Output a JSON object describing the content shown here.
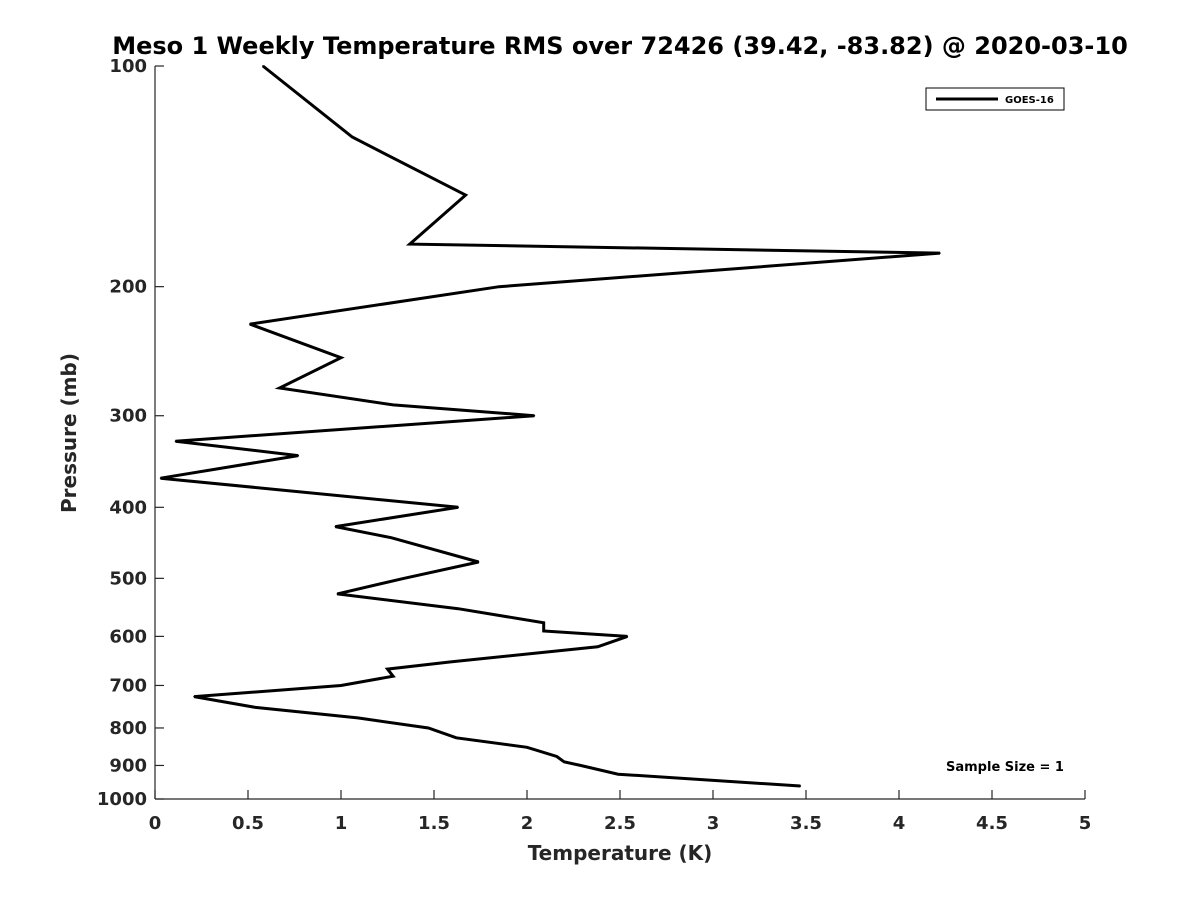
{
  "chart_data": {
    "type": "line",
    "title": "Meso 1 Weekly Temperature RMS over 72426 (39.42, -83.82) @ 2020-03-10",
    "xlabel": "Temperature (K)",
    "ylabel": "Pressure (mb)",
    "xlim": [
      0,
      5
    ],
    "ylim": [
      100,
      1000
    ],
    "y_scale": "log",
    "y_reversed": true,
    "xticks": [
      "0",
      "0.5",
      "1",
      "1.5",
      "2",
      "2.5",
      "3",
      "3.5",
      "4",
      "4.5",
      "5"
    ],
    "yticks": [
      "100",
      "200",
      "300",
      "400",
      "500",
      "600",
      "700",
      "800",
      "900",
      "1000"
    ],
    "grid": false,
    "legend_position": "top-right",
    "annotation": "Sample Size = 1",
    "series": [
      {
        "name": "GOES-16",
        "color": "#000000",
        "points": [
          {
            "x": 0.58,
            "y": 100
          },
          {
            "x": 1.06,
            "y": 125
          },
          {
            "x": 1.67,
            "y": 150
          },
          {
            "x": 1.37,
            "y": 175
          },
          {
            "x": 4.22,
            "y": 180
          },
          {
            "x": 1.85,
            "y": 200
          },
          {
            "x": 0.51,
            "y": 225
          },
          {
            "x": 1.0,
            "y": 250
          },
          {
            "x": 0.67,
            "y": 275
          },
          {
            "x": 1.28,
            "y": 290
          },
          {
            "x": 2.04,
            "y": 300
          },
          {
            "x": 0.11,
            "y": 325
          },
          {
            "x": 0.77,
            "y": 340
          },
          {
            "x": 0.03,
            "y": 365
          },
          {
            "x": 1.63,
            "y": 400
          },
          {
            "x": 0.97,
            "y": 425
          },
          {
            "x": 1.27,
            "y": 440
          },
          {
            "x": 1.74,
            "y": 475
          },
          {
            "x": 1.34,
            "y": 500
          },
          {
            "x": 0.98,
            "y": 525
          },
          {
            "x": 1.63,
            "y": 550
          },
          {
            "x": 2.09,
            "y": 575
          },
          {
            "x": 2.09,
            "y": 590
          },
          {
            "x": 2.54,
            "y": 600
          },
          {
            "x": 2.38,
            "y": 620
          },
          {
            "x": 1.59,
            "y": 650
          },
          {
            "x": 1.25,
            "y": 665
          },
          {
            "x": 1.28,
            "y": 680
          },
          {
            "x": 1.0,
            "y": 700
          },
          {
            "x": 0.21,
            "y": 725
          },
          {
            "x": 0.54,
            "y": 750
          },
          {
            "x": 1.09,
            "y": 775
          },
          {
            "x": 1.47,
            "y": 800
          },
          {
            "x": 1.62,
            "y": 825
          },
          {
            "x": 2.0,
            "y": 850
          },
          {
            "x": 2.16,
            "y": 875
          },
          {
            "x": 2.2,
            "y": 890
          },
          {
            "x": 2.29,
            "y": 900
          },
          {
            "x": 2.49,
            "y": 925
          },
          {
            "x": 3.47,
            "y": 960
          }
        ]
      }
    ]
  }
}
